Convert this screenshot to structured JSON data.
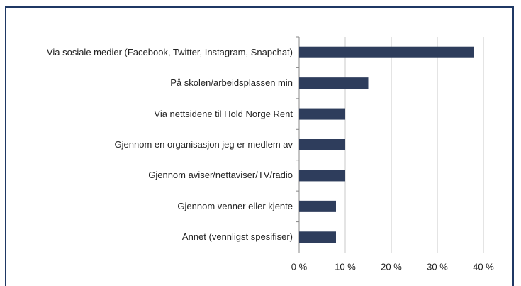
{
  "chart_data": {
    "type": "bar",
    "orientation": "horizontal",
    "categories": [
      "Via sosiale medier (Facebook, Twitter, Instagram, Snapchat)",
      "På skolen/arbeidsplassen min",
      "Via nettsidene til Hold Norge Rent",
      "Gjennom en organisasjon jeg er medlem av",
      "Gjennom aviser/nettaviser/TV/radio",
      "Gjennom venner eller kjente",
      "Annet (vennligst spesifiser)"
    ],
    "values": [
      38,
      15,
      10,
      10,
      10,
      8,
      8
    ],
    "color": "#2e3d5c",
    "xlim": [
      0,
      40
    ],
    "xticks": [
      {
        "value": 0,
        "label": "0 %"
      },
      {
        "value": 10,
        "label": "10 %"
      },
      {
        "value": 20,
        "label": "20 %"
      },
      {
        "value": 30,
        "label": "30 %"
      },
      {
        "value": 40,
        "label": "40 %"
      }
    ],
    "grid": true
  }
}
